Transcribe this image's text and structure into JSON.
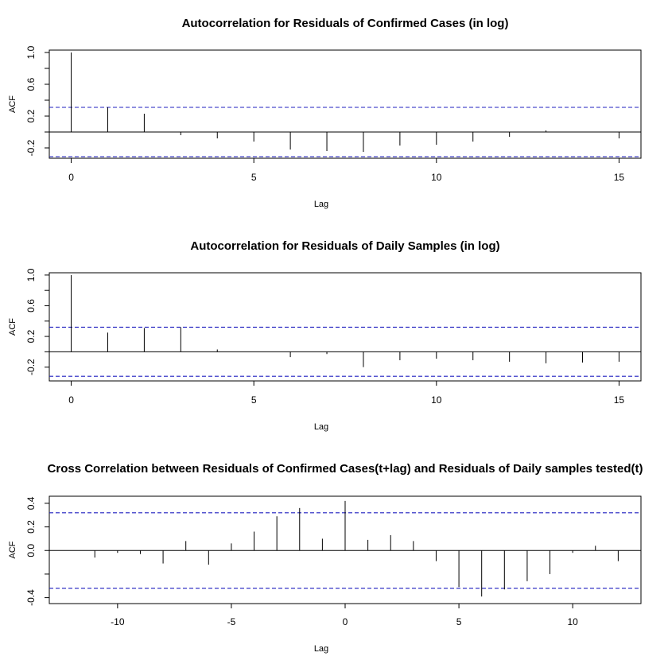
{
  "chart_data": [
    {
      "type": "bar",
      "title": "Autocorrelation for Residuals of Confirmed Cases (in log)",
      "xlabel": "Lag",
      "ylabel": "ACF",
      "xlim": [
        -0.6,
        15.6
      ],
      "ylim": [
        -0.33,
        1.03
      ],
      "xticks": [
        0,
        5,
        10,
        15
      ],
      "yticks": [
        -0.2,
        0.2,
        0.6,
        1.0
      ],
      "ytick_labels": [
        "-0.2",
        "0.2",
        "0.6",
        "1.0"
      ],
      "yminor": [
        0.0,
        0.4,
        0.8
      ],
      "confidence": [
        0.31,
        -0.31
      ],
      "x": [
        0,
        1,
        2,
        3,
        4,
        5,
        6,
        7,
        8,
        9,
        10,
        11,
        12,
        13,
        14,
        15
      ],
      "values": [
        1.0,
        0.31,
        0.23,
        -0.04,
        -0.08,
        -0.12,
        -0.22,
        -0.24,
        -0.25,
        -0.17,
        -0.16,
        -0.12,
        -0.06,
        0.02,
        0.0,
        -0.08
      ]
    },
    {
      "type": "bar",
      "title": "Autocorrelation for Residuals of Daily Samples (in log)",
      "xlabel": "Lag",
      "ylabel": "ACF",
      "xlim": [
        -0.6,
        15.6
      ],
      "ylim": [
        -0.38,
        1.03
      ],
      "xticks": [
        0,
        5,
        10,
        15
      ],
      "yticks": [
        -0.2,
        0.2,
        0.6,
        1.0
      ],
      "ytick_labels": [
        "-0.2",
        "0.2",
        "0.6",
        "1.0"
      ],
      "yminor": [
        0.0,
        0.4,
        0.8
      ],
      "confidence": [
        0.32,
        -0.32
      ],
      "x": [
        0,
        1,
        2,
        3,
        4,
        5,
        6,
        7,
        8,
        9,
        10,
        11,
        12,
        13,
        14,
        15
      ],
      "values": [
        1.0,
        0.25,
        0.31,
        0.32,
        0.03,
        0.0,
        -0.07,
        -0.03,
        -0.2,
        -0.11,
        -0.09,
        -0.11,
        -0.13,
        -0.15,
        -0.14,
        -0.13
      ]
    },
    {
      "type": "bar",
      "title": "Cross Correlation between Residuals of Confirmed Cases(t+lag) and Residuals of Daily samples tested(t)",
      "xlabel": "Lag",
      "ylabel": "ACF",
      "xlim": [
        -13,
        13
      ],
      "ylim": [
        -0.45,
        0.46
      ],
      "xticks": [
        -10,
        -5,
        0,
        5,
        10
      ],
      "yticks": [
        -0.4,
        0.0,
        0.2,
        0.4
      ],
      "ytick_labels": [
        "-0.4",
        "0.0",
        "0.2",
        "0.4"
      ],
      "yminor": [
        -0.2
      ],
      "confidence": [
        0.32,
        -0.32
      ],
      "x": [
        -12,
        -11,
        -10,
        -9,
        -8,
        -7,
        -6,
        -5,
        -4,
        -3,
        -2,
        -1,
        0,
        1,
        2,
        3,
        4,
        5,
        6,
        7,
        8,
        9,
        10,
        11,
        12
      ],
      "values": [
        0.0,
        -0.06,
        -0.02,
        -0.03,
        -0.11,
        0.08,
        -0.12,
        0.06,
        0.16,
        0.29,
        0.36,
        0.1,
        0.42,
        0.09,
        0.13,
        0.08,
        -0.09,
        -0.31,
        -0.39,
        -0.33,
        -0.26,
        -0.2,
        -0.02,
        0.04,
        -0.09
      ]
    }
  ]
}
